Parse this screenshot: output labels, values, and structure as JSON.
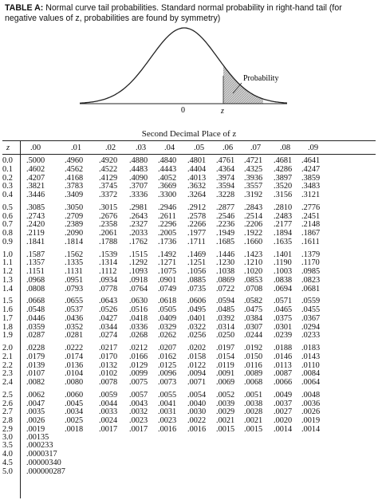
{
  "caption": {
    "label": "TABLE A:",
    "text": "Normal curve tail probabilities. Standard normal probability in right-hand tail (for negative values of z, probabilities are found by symmetry)"
  },
  "figure": {
    "prob_label": "Probability",
    "zero_label": "0",
    "z_label": "z"
  },
  "table": {
    "title": "Second Decimal Place of z",
    "z_header": "z",
    "columns": [
      ".00",
      ".01",
      ".02",
      ".03",
      ".04",
      ".05",
      ".06",
      ".07",
      ".08",
      ".09"
    ],
    "rows": [
      {
        "z": "0.0",
        "v": [
          ".5000",
          ".4960",
          ".4920",
          ".4880",
          ".4840",
          ".4801",
          ".4761",
          ".4721",
          ".4681",
          ".4641"
        ]
      },
      {
        "z": "0.1",
        "v": [
          ".4602",
          ".4562",
          ".4522",
          ".4483",
          ".4443",
          ".4404",
          ".4364",
          ".4325",
          ".4286",
          ".4247"
        ]
      },
      {
        "z": "0.2",
        "v": [
          ".4207",
          ".4168",
          ".4129",
          ".4090",
          ".4052",
          ".4013",
          ".3974",
          ".3936",
          ".3897",
          ".3859"
        ]
      },
      {
        "z": "0.3",
        "v": [
          ".3821",
          ".3783",
          ".3745",
          ".3707",
          ".3669",
          ".3632",
          ".3594",
          ".3557",
          ".3520",
          ".3483"
        ]
      },
      {
        "z": "0.4",
        "v": [
          ".3446",
          ".3409",
          ".3372",
          ".3336",
          ".3300",
          ".3264",
          ".3228",
          ".3192",
          ".3156",
          ".3121"
        ]
      },
      {
        "z": "0.5",
        "v": [
          ".3085",
          ".3050",
          ".3015",
          ".2981",
          ".2946",
          ".2912",
          ".2877",
          ".2843",
          ".2810",
          ".2776"
        ]
      },
      {
        "z": "0.6",
        "v": [
          ".2743",
          ".2709",
          ".2676",
          ".2643",
          ".2611",
          ".2578",
          ".2546",
          ".2514",
          ".2483",
          ".2451"
        ]
      },
      {
        "z": "0.7",
        "v": [
          ".2420",
          ".2389",
          ".2358",
          ".2327",
          ".2296",
          ".2266",
          ".2236",
          ".2206",
          ".2177",
          ".2148"
        ]
      },
      {
        "z": "0.8",
        "v": [
          ".2119",
          ".2090",
          ".2061",
          ".2033",
          ".2005",
          ".1977",
          ".1949",
          ".1922",
          ".1894",
          ".1867"
        ]
      },
      {
        "z": "0.9",
        "v": [
          ".1841",
          ".1814",
          ".1788",
          ".1762",
          ".1736",
          ".1711",
          ".1685",
          ".1660",
          ".1635",
          ".1611"
        ]
      },
      {
        "z": "1.0",
        "v": [
          ".1587",
          ".1562",
          ".1539",
          ".1515",
          ".1492",
          ".1469",
          ".1446",
          ".1423",
          ".1401",
          ".1379"
        ]
      },
      {
        "z": "1.1",
        "v": [
          ".1357",
          ".1335",
          ".1314",
          ".1292",
          ".1271",
          ".1251",
          ".1230",
          ".1210",
          ".1190",
          ".1170"
        ]
      },
      {
        "z": "1.2",
        "v": [
          ".1151",
          ".1131",
          ".1112",
          ".1093",
          ".1075",
          ".1056",
          ".1038",
          ".1020",
          ".1003",
          ".0985"
        ]
      },
      {
        "z": "1.3",
        "v": [
          ".0968",
          ".0951",
          ".0934",
          ".0918",
          ".0901",
          ".0885",
          ".0869",
          ".0853",
          ".0838",
          ".0823"
        ]
      },
      {
        "z": "1.4",
        "v": [
          ".0808",
          ".0793",
          ".0778",
          ".0764",
          ".0749",
          ".0735",
          ".0722",
          ".0708",
          ".0694",
          ".0681"
        ]
      },
      {
        "z": "1.5",
        "v": [
          ".0668",
          ".0655",
          ".0643",
          ".0630",
          ".0618",
          ".0606",
          ".0594",
          ".0582",
          ".0571",
          ".0559"
        ]
      },
      {
        "z": "1.6",
        "v": [
          ".0548",
          ".0537",
          ".0526",
          ".0516",
          ".0505",
          ".0495",
          ".0485",
          ".0475",
          ".0465",
          ".0455"
        ]
      },
      {
        "z": "1.7",
        "v": [
          ".0446",
          ".0436",
          ".0427",
          ".0418",
          ".0409",
          ".0401",
          ".0392",
          ".0384",
          ".0375",
          ".0367"
        ]
      },
      {
        "z": "1.8",
        "v": [
          ".0359",
          ".0352",
          ".0344",
          ".0336",
          ".0329",
          ".0322",
          ".0314",
          ".0307",
          ".0301",
          ".0294"
        ]
      },
      {
        "z": "1.9",
        "v": [
          ".0287",
          ".0281",
          ".0274",
          ".0268",
          ".0262",
          ".0256",
          ".0250",
          ".0244",
          ".0239",
          ".0233"
        ]
      },
      {
        "z": "2.0",
        "v": [
          ".0228",
          ".0222",
          ".0217",
          ".0212",
          ".0207",
          ".0202",
          ".0197",
          ".0192",
          ".0188",
          ".0183"
        ]
      },
      {
        "z": "2.1",
        "v": [
          ".0179",
          ".0174",
          ".0170",
          ".0166",
          ".0162",
          ".0158",
          ".0154",
          ".0150",
          ".0146",
          ".0143"
        ]
      },
      {
        "z": "2.2",
        "v": [
          ".0139",
          ".0136",
          ".0132",
          ".0129",
          ".0125",
          ".0122",
          ".0119",
          ".0116",
          ".0113",
          ".0110"
        ]
      },
      {
        "z": "2.3",
        "v": [
          ".0107",
          ".0104",
          ".0102",
          ".0099",
          ".0096",
          ".0094",
          ".0091",
          ".0089",
          ".0087",
          ".0084"
        ]
      },
      {
        "z": "2.4",
        "v": [
          ".0082",
          ".0080",
          ".0078",
          ".0075",
          ".0073",
          ".0071",
          ".0069",
          ".0068",
          ".0066",
          ".0064"
        ]
      },
      {
        "z": "2.5",
        "v": [
          ".0062",
          ".0060",
          ".0059",
          ".0057",
          ".0055",
          ".0054",
          ".0052",
          ".0051",
          ".0049",
          ".0048"
        ]
      },
      {
        "z": "2.6",
        "v": [
          ".0047",
          ".0045",
          ".0044",
          ".0043",
          ".0041",
          ".0040",
          ".0039",
          ".0038",
          ".0037",
          ".0036"
        ]
      },
      {
        "z": "2.7",
        "v": [
          ".0035",
          ".0034",
          ".0033",
          ".0032",
          ".0031",
          ".0030",
          ".0029",
          ".0028",
          ".0027",
          ".0026"
        ]
      },
      {
        "z": "2.8",
        "v": [
          ".0026",
          ".0025",
          ".0024",
          ".0023",
          ".0023",
          ".0022",
          ".0021",
          ".0021",
          ".0020",
          ".0019"
        ]
      },
      {
        "z": "2.9",
        "v": [
          ".0019",
          ".0018",
          ".0017",
          ".0017",
          ".0016",
          ".0016",
          ".0015",
          ".0015",
          ".0014",
          ".0014"
        ]
      },
      {
        "z": "3.0",
        "v": [
          ".00135"
        ]
      },
      {
        "z": "3.5",
        "v": [
          ".000233"
        ]
      },
      {
        "z": "4.0",
        "v": [
          ".0000317"
        ]
      },
      {
        "z": "4.5",
        "v": [
          ".00000340"
        ]
      },
      {
        "z": "5.0",
        "v": [
          ".000000287"
        ]
      }
    ]
  }
}
